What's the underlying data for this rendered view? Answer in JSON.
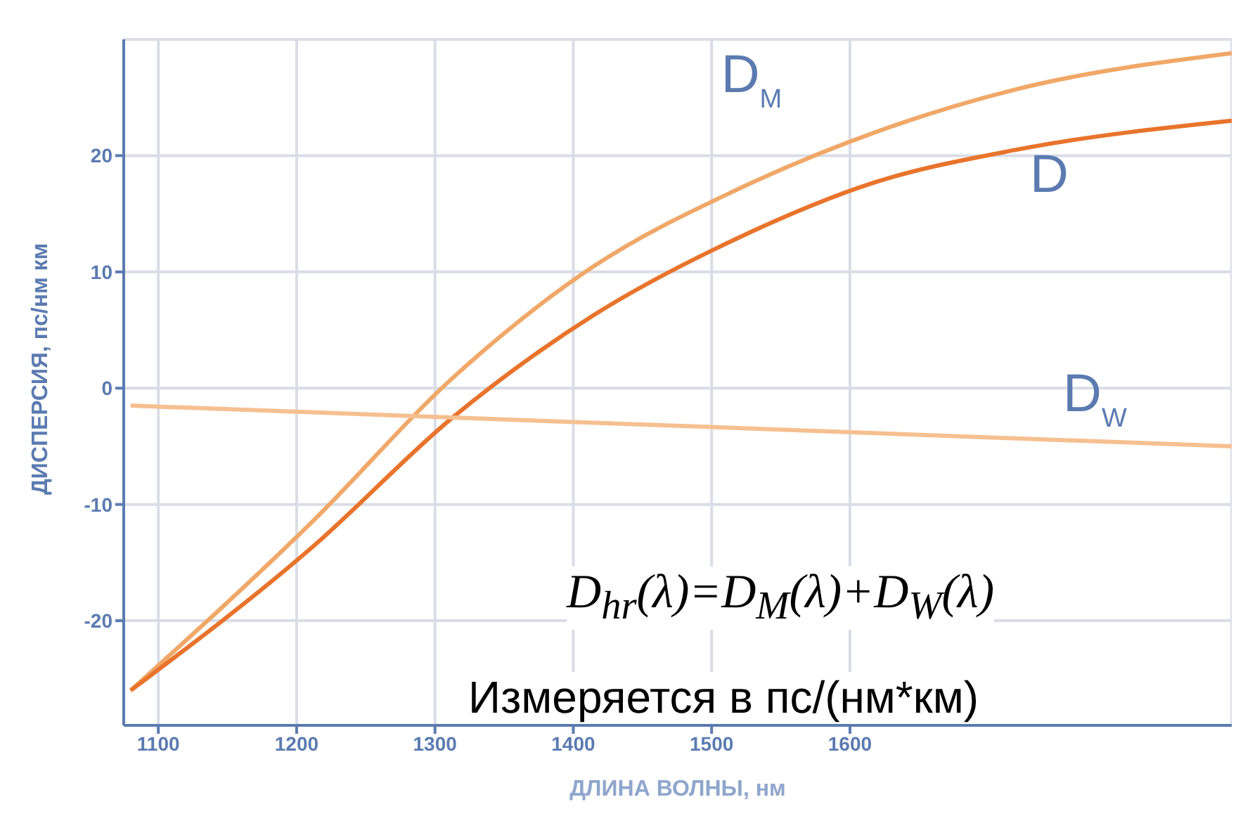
{
  "chart_data": {
    "type": "line",
    "xlabel": "ДЛИНА ВОЛНЫ, нм",
    "ylabel": "ДИСПЕРСИЯ, пс/нм км",
    "xlim": [
      1075,
      1876
    ],
    "ylim": [
      -29,
      30
    ],
    "xticks": [
      1100,
      1200,
      1300,
      1400,
      1500,
      1600
    ],
    "yticks": [
      -20,
      -10,
      0,
      10,
      20
    ],
    "grid": true,
    "legend": false,
    "marker": "none",
    "line_style": "solid",
    "series": [
      {
        "name": "D$_{M}$",
        "color": "#f0a868",
        "x": [
          1080,
          1212,
          1313,
          1415,
          1517,
          1618,
          1720,
          1876
        ],
        "values": [
          -26,
          -11.4,
          0.9,
          10.5,
          17,
          22,
          25.7,
          28.8
        ]
      },
      {
        "name": "D",
        "color": "#e8742c",
        "x": [
          1080,
          1212,
          1313,
          1415,
          1517,
          1618,
          1720,
          1876
        ],
        "values": [
          -26,
          -13.6,
          -2.5,
          6.3,
          12.8,
          17.7,
          20.5,
          23
        ]
      },
      {
        "name": "D$_{W}$",
        "color": "#f5c090",
        "x": [
          1080,
          1876
        ],
        "values": [
          -1.5,
          -5
        ]
      }
    ],
    "annotations": [
      "D$_{hr}$(λ)=D$_{M}$(λ)+D$_{W}$(λ)",
      "Измеряется в пс/(нм*км)"
    ]
  }
}
